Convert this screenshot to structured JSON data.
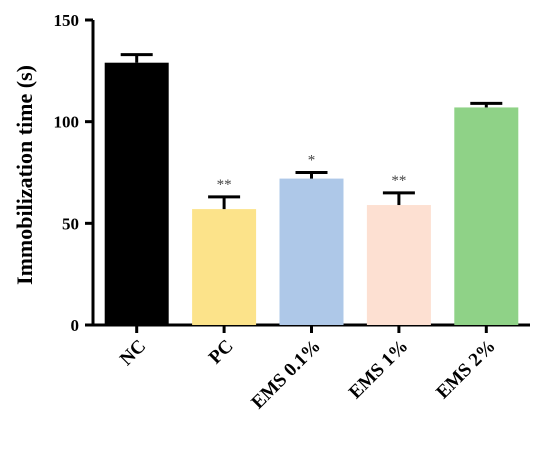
{
  "chart_data": {
    "type": "bar",
    "ylabel": "Immobilization time (s)",
    "xlabel": "",
    "ylim": [
      0,
      150
    ],
    "yticks": [
      "0",
      "50",
      "100",
      "150"
    ],
    "categories": [
      "NC",
      "PC",
      "EMS 0.1%",
      "EMS 1%",
      "EMS 2%"
    ],
    "values": [
      129,
      57,
      72,
      59,
      107
    ],
    "errors": [
      4,
      6,
      3,
      6,
      2
    ],
    "significance": [
      "",
      "**",
      "*",
      "**",
      ""
    ],
    "colors": [
      "#000000",
      "#fce38a",
      "#aec8e8",
      "#fde0d2",
      "#8fd287"
    ],
    "grid": false,
    "legend": "none"
  }
}
